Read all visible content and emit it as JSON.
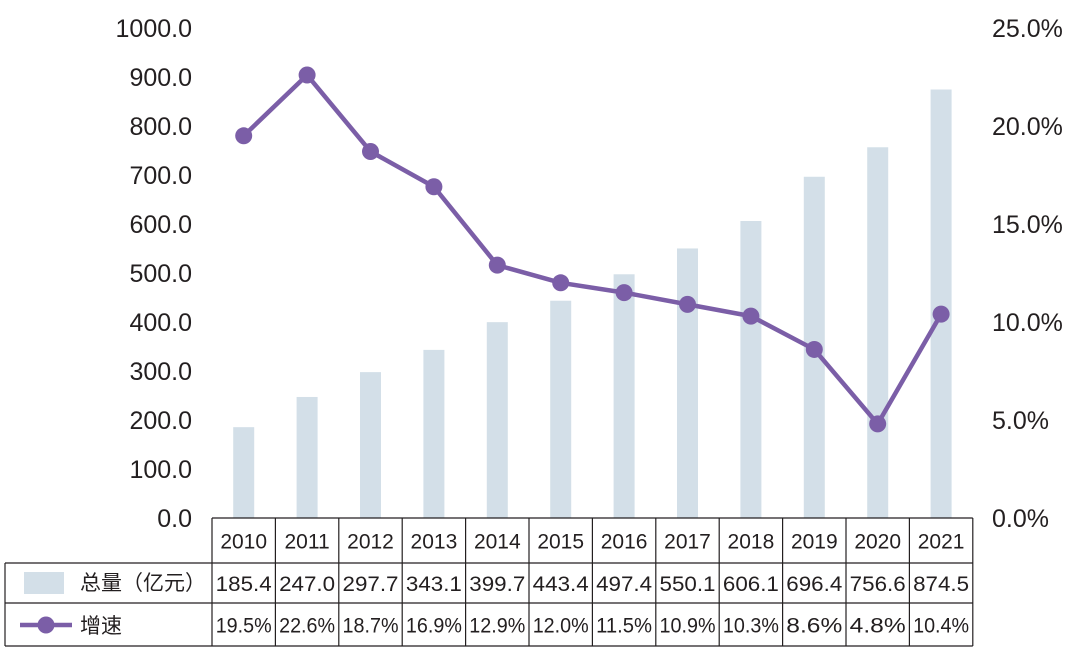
{
  "chart_data": {
    "type": "bar",
    "categories": [
      "2010",
      "2011",
      "2012",
      "2013",
      "2014",
      "2015",
      "2016",
      "2017",
      "2018",
      "2019",
      "2020",
      "2021"
    ],
    "series": [
      {
        "name": "总量（亿元）",
        "type": "bar",
        "axis": "left",
        "color": "#d3dfe8",
        "values": [
          185.4,
          247.0,
          297.7,
          343.1,
          399.7,
          443.4,
          497.4,
          550.1,
          606.1,
          696.4,
          756.6,
          874.5
        ],
        "labels": [
          "185.4",
          "247.0",
          "297.7",
          "343.1",
          "399.7",
          "443.4",
          "497.4",
          "550.1",
          "606.1",
          "696.4",
          "756.6",
          "874.5"
        ]
      },
      {
        "name": "增速",
        "type": "line",
        "axis": "right",
        "color": "#7b5ea7",
        "values": [
          19.5,
          22.6,
          18.7,
          16.9,
          12.9,
          12.0,
          11.5,
          10.9,
          10.3,
          8.6,
          4.8,
          10.4
        ],
        "labels": [
          "19.5%",
          "22.6%",
          "18.7%",
          "16.9%",
          "12.9%",
          "12.0%",
          "11.5%",
          "10.9%",
          "10.3%",
          "8.6%",
          "4.8%",
          "10.4%"
        ]
      }
    ],
    "y_left": {
      "ylim": [
        0,
        1000
      ],
      "ticks": [
        "0.0",
        "100.0",
        "200.0",
        "300.0",
        "400.0",
        "500.0",
        "600.0",
        "700.0",
        "800.0",
        "900.0",
        "1000.0"
      ]
    },
    "y_right": {
      "ylim": [
        0,
        25
      ],
      "ticks": [
        "0.0%",
        "5.0%",
        "10.0%",
        "15.0%",
        "20.0%",
        "25.0%"
      ]
    },
    "grid": false,
    "legend": "data-table-bottom"
  }
}
